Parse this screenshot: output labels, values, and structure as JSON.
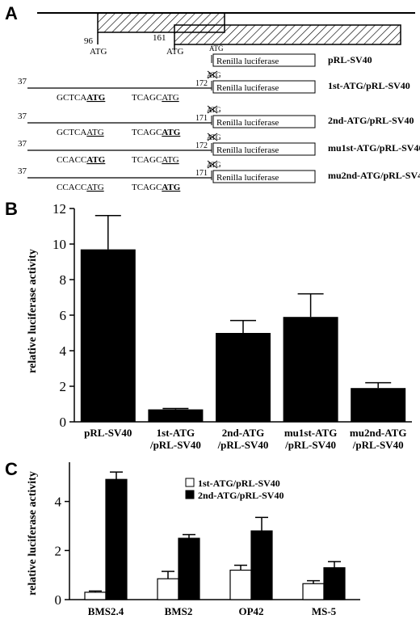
{
  "panels": {
    "a": {
      "label": "A",
      "pos_first": "96",
      "pos_second": "161",
      "atg_label": "ATG",
      "start_pos": "37",
      "reporter": "Renilla luciferase",
      "site2_prefix": "TCAGC",
      "constructs": [
        {
          "name": "pRL-SV40"
        },
        {
          "name": "1st-ATG/pRL-SV40",
          "junction": "172",
          "site1_prefix": "GCTCA"
        },
        {
          "name": "2nd-ATG/pRL-SV40",
          "junction": "171",
          "site1_prefix": "GCTCA"
        },
        {
          "name": "mu1st-ATG/pRL-SV40",
          "junction": "172",
          "site1_prefix": "CCACC"
        },
        {
          "name": "mu2nd-ATG/pRL-SV40",
          "junction": "171",
          "site1_prefix": "CCACC"
        }
      ]
    },
    "b": {
      "label": "B"
    },
    "c": {
      "label": "C"
    }
  },
  "chart_data": [
    {
      "type": "bar",
      "ylabel": "relative luciferase activity",
      "ylim": [
        0,
        12
      ],
      "yticks": [
        0,
        2,
        4,
        6,
        8,
        10,
        12
      ],
      "categories": [
        [
          "pRL-SV40"
        ],
        [
          "1st-ATG",
          "/pRL-SV40"
        ],
        [
          "2nd-ATG",
          "/pRL-SV40"
        ],
        [
          "mu1st-ATG",
          "/pRL-SV40"
        ],
        [
          "mu2nd-ATG",
          "/pRL-SV40"
        ]
      ],
      "values": [
        9.7,
        0.7,
        5.0,
        5.9,
        1.9
      ],
      "errors": [
        1.9,
        0.05,
        0.7,
        1.3,
        0.3
      ],
      "color": "#000000",
      "grid": false
    },
    {
      "type": "bar",
      "ylabel": "relative luciferase activity",
      "ylim": [
        0,
        5.6
      ],
      "yticks": [
        0,
        2,
        4
      ],
      "categories": [
        "BMS2.4",
        "BMS2",
        "OP42",
        "MS-5"
      ],
      "series": [
        {
          "name": "1st-ATG/pRL-SV40",
          "values": [
            0.3,
            0.85,
            1.2,
            0.65
          ],
          "errors": [
            0.05,
            0.3,
            0.2,
            0.12
          ],
          "color": "#ffffff"
        },
        {
          "name": "2nd-ATG/pRL-SV40",
          "values": [
            4.9,
            2.5,
            2.8,
            1.3
          ],
          "errors": [
            0.3,
            0.15,
            0.55,
            0.25
          ],
          "color": "#000000"
        }
      ],
      "legend": "top-right",
      "grid": false
    }
  ]
}
